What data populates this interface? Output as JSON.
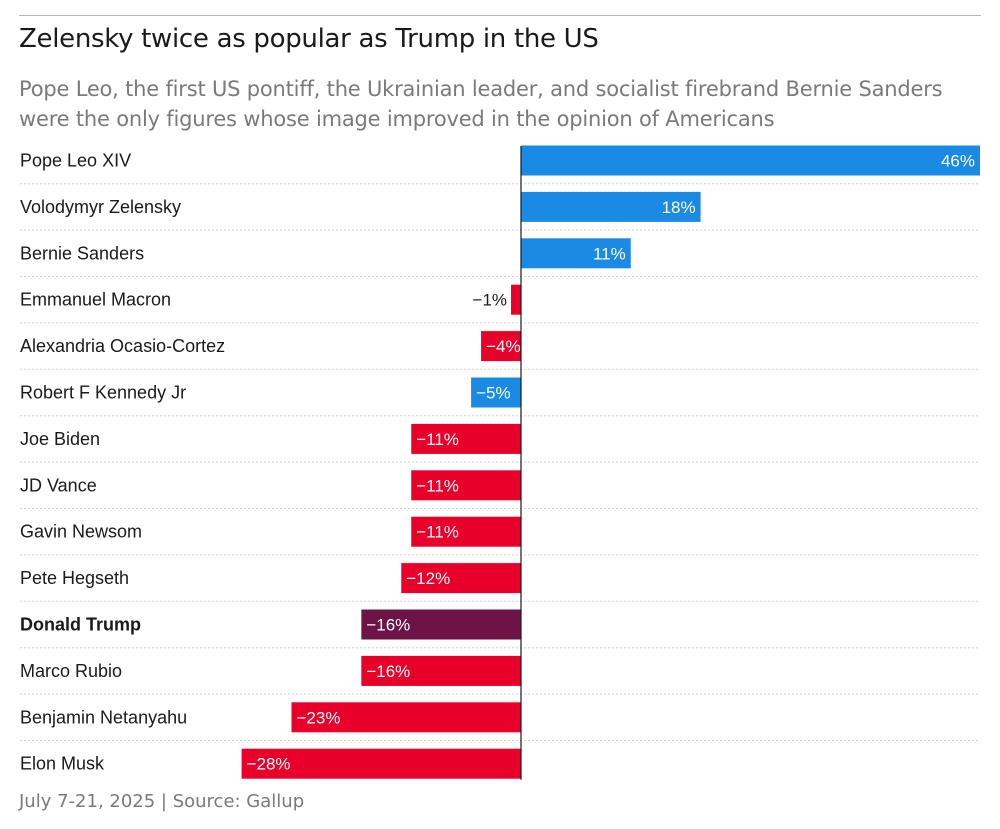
{
  "header": {
    "title": "Zelensky twice as popular as Trump in the US",
    "subtitle": "Pope Leo, the first US pontiff, the Ukrainian leader, and socialist firebrand Bernie Sanders were the only figures whose image improved in the opinion of Americans"
  },
  "footer": {
    "source": "July 7-21, 2025 | Source: Gallup"
  },
  "colors": {
    "positive": "#1a8ae5",
    "negative": "#e8002a",
    "highlight": "#6e1346",
    "gridline": "#d0d0d0",
    "axis": "#1a1a1a"
  },
  "chart_data": {
    "type": "bar",
    "orientation": "horizontal",
    "title": "Zelensky twice as popular as Trump in the US",
    "xlabel": "",
    "ylabel": "",
    "xlim": [
      -28,
      46
    ],
    "value_unit": "%",
    "legend": "none",
    "grid": "dotted row separators",
    "categories": [
      "Pope Leo XIV",
      "Volodymyr Zelensky",
      "Bernie Sanders",
      "Emmanuel Macron",
      "Alexandria Ocasio-Cortez",
      "Robert F Kennedy Jr",
      "Joe Biden",
      "JD Vance",
      "Gavin Newsom",
      "Pete Hegseth",
      "Donald Trump",
      "Marco Rubio",
      "Benjamin Netanyahu",
      "Elon Musk"
    ],
    "values": [
      46,
      18,
      11,
      -1,
      -4,
      -5,
      -11,
      -11,
      -11,
      -12,
      -16,
      -16,
      -23,
      -28
    ],
    "bar_labels": [
      "46%",
      "18%",
      "11%",
      "−1%",
      "−4%",
      "−5%",
      "−11%",
      "−11%",
      "−11%",
      "−12%",
      "−16%",
      "−16%",
      "−23%",
      "−28%"
    ],
    "bar_colors": [
      "positive",
      "positive",
      "positive",
      "negative",
      "negative",
      "positive",
      "negative",
      "negative",
      "negative",
      "negative",
      "highlight",
      "negative",
      "negative",
      "negative"
    ],
    "highlighted_category": "Donald Trump"
  }
}
